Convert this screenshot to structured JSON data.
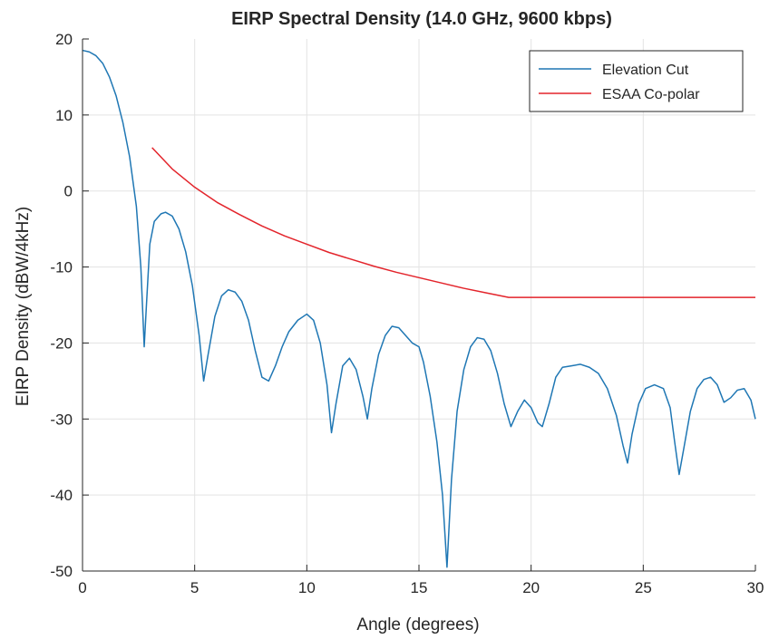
{
  "chart_data": {
    "type": "line",
    "title": "EIRP Spectral Density (14.0 GHz, 9600 kbps)",
    "xlabel": "Angle (degrees)",
    "ylabel": "EIRP Density (dBW/4kHz)",
    "xlim": [
      0,
      30
    ],
    "ylim": [
      -50,
      20
    ],
    "x_ticks": [
      0,
      5,
      10,
      15,
      20,
      25,
      30
    ],
    "y_ticks": [
      20,
      10,
      0,
      -10,
      -20,
      -30,
      -40,
      -50
    ],
    "x_tick_labels": [
      "0",
      "5",
      "10",
      "15",
      "20",
      "25",
      "30"
    ],
    "y_tick_labels": [
      "20",
      "10",
      "0",
      "-10",
      "-20",
      "-30",
      "-40",
      "-50"
    ],
    "grid": true,
    "legend_position": "top-right",
    "series": [
      {
        "name": "Elevation Cut",
        "color": "#1f77b4",
        "points": [
          [
            0.0,
            18.5
          ],
          [
            0.3,
            18.3
          ],
          [
            0.6,
            17.8
          ],
          [
            0.9,
            16.8
          ],
          [
            1.2,
            15.0
          ],
          [
            1.5,
            12.5
          ],
          [
            1.8,
            9.0
          ],
          [
            2.1,
            4.5
          ],
          [
            2.4,
            -2.0
          ],
          [
            2.6,
            -10.0
          ],
          [
            2.75,
            -20.5
          ],
          [
            2.85,
            -15.0
          ],
          [
            3.0,
            -7.0
          ],
          [
            3.2,
            -4.0
          ],
          [
            3.5,
            -3.0
          ],
          [
            3.7,
            -2.8
          ],
          [
            4.0,
            -3.3
          ],
          [
            4.3,
            -5.0
          ],
          [
            4.6,
            -8.0
          ],
          [
            4.9,
            -12.5
          ],
          [
            5.2,
            -19.0
          ],
          [
            5.4,
            -25.0
          ],
          [
            5.6,
            -21.5
          ],
          [
            5.9,
            -16.5
          ],
          [
            6.2,
            -13.8
          ],
          [
            6.5,
            -13.0
          ],
          [
            6.8,
            -13.3
          ],
          [
            7.1,
            -14.5
          ],
          [
            7.4,
            -17.0
          ],
          [
            7.7,
            -21.0
          ],
          [
            8.0,
            -24.5
          ],
          [
            8.3,
            -25.0
          ],
          [
            8.6,
            -23.0
          ],
          [
            8.9,
            -20.5
          ],
          [
            9.2,
            -18.5
          ],
          [
            9.6,
            -17.0
          ],
          [
            10.0,
            -16.2
          ],
          [
            10.3,
            -17.0
          ],
          [
            10.6,
            -20.0
          ],
          [
            10.9,
            -25.5
          ],
          [
            11.1,
            -31.8
          ],
          [
            11.3,
            -28.0
          ],
          [
            11.6,
            -23.0
          ],
          [
            11.9,
            -22.0
          ],
          [
            12.2,
            -23.5
          ],
          [
            12.5,
            -27.0
          ],
          [
            12.7,
            -30.0
          ],
          [
            12.9,
            -26.0
          ],
          [
            13.2,
            -21.5
          ],
          [
            13.5,
            -19.0
          ],
          [
            13.8,
            -17.8
          ],
          [
            14.1,
            -18.0
          ],
          [
            14.4,
            -19.0
          ],
          [
            14.7,
            -20.0
          ],
          [
            15.0,
            -20.5
          ],
          [
            15.2,
            -22.5
          ],
          [
            15.5,
            -27.0
          ],
          [
            15.8,
            -33.0
          ],
          [
            16.05,
            -40.0
          ],
          [
            16.25,
            -49.5
          ],
          [
            16.45,
            -38.0
          ],
          [
            16.7,
            -29.0
          ],
          [
            17.0,
            -23.5
          ],
          [
            17.3,
            -20.5
          ],
          [
            17.6,
            -19.3
          ],
          [
            17.9,
            -19.5
          ],
          [
            18.2,
            -21.0
          ],
          [
            18.5,
            -24.0
          ],
          [
            18.8,
            -28.0
          ],
          [
            19.1,
            -31.0
          ],
          [
            19.4,
            -29.0
          ],
          [
            19.7,
            -27.5
          ],
          [
            20.0,
            -28.5
          ],
          [
            20.3,
            -30.5
          ],
          [
            20.5,
            -31.0
          ],
          [
            20.8,
            -28.0
          ],
          [
            21.1,
            -24.5
          ],
          [
            21.4,
            -23.2
          ],
          [
            21.8,
            -23.0
          ],
          [
            22.2,
            -22.8
          ],
          [
            22.6,
            -23.2
          ],
          [
            23.0,
            -24.0
          ],
          [
            23.4,
            -26.0
          ],
          [
            23.8,
            -29.5
          ],
          [
            24.1,
            -33.5
          ],
          [
            24.3,
            -35.8
          ],
          [
            24.5,
            -32.0
          ],
          [
            24.8,
            -28.0
          ],
          [
            25.1,
            -26.0
          ],
          [
            25.5,
            -25.5
          ],
          [
            25.9,
            -26.0
          ],
          [
            26.2,
            -28.5
          ],
          [
            26.4,
            -33.0
          ],
          [
            26.6,
            -37.3
          ],
          [
            26.8,
            -34.0
          ],
          [
            27.1,
            -29.0
          ],
          [
            27.4,
            -26.0
          ],
          [
            27.7,
            -24.8
          ],
          [
            28.0,
            -24.5
          ],
          [
            28.3,
            -25.5
          ],
          [
            28.6,
            -27.8
          ],
          [
            28.9,
            -27.2
          ],
          [
            29.2,
            -26.2
          ],
          [
            29.5,
            -26.0
          ],
          [
            29.8,
            -27.5
          ],
          [
            30.0,
            -30.0
          ]
        ]
      },
      {
        "name": "ESAA Co-polar",
        "color": "#e3242b",
        "points": [
          [
            3.1,
            5.7
          ],
          [
            4.0,
            2.9
          ],
          [
            5.0,
            0.5
          ],
          [
            6.0,
            -1.5
          ],
          [
            7.0,
            -3.1
          ],
          [
            8.0,
            -4.6
          ],
          [
            9.0,
            -5.9
          ],
          [
            10.0,
            -7.0
          ],
          [
            11.0,
            -8.1
          ],
          [
            12.0,
            -9.0
          ],
          [
            13.0,
            -9.9
          ],
          [
            14.0,
            -10.7
          ],
          [
            15.0,
            -11.4
          ],
          [
            16.0,
            -12.1
          ],
          [
            17.0,
            -12.8
          ],
          [
            18.0,
            -13.4
          ],
          [
            19.0,
            -14.0
          ],
          [
            30.0,
            -14.0
          ]
        ]
      }
    ]
  }
}
